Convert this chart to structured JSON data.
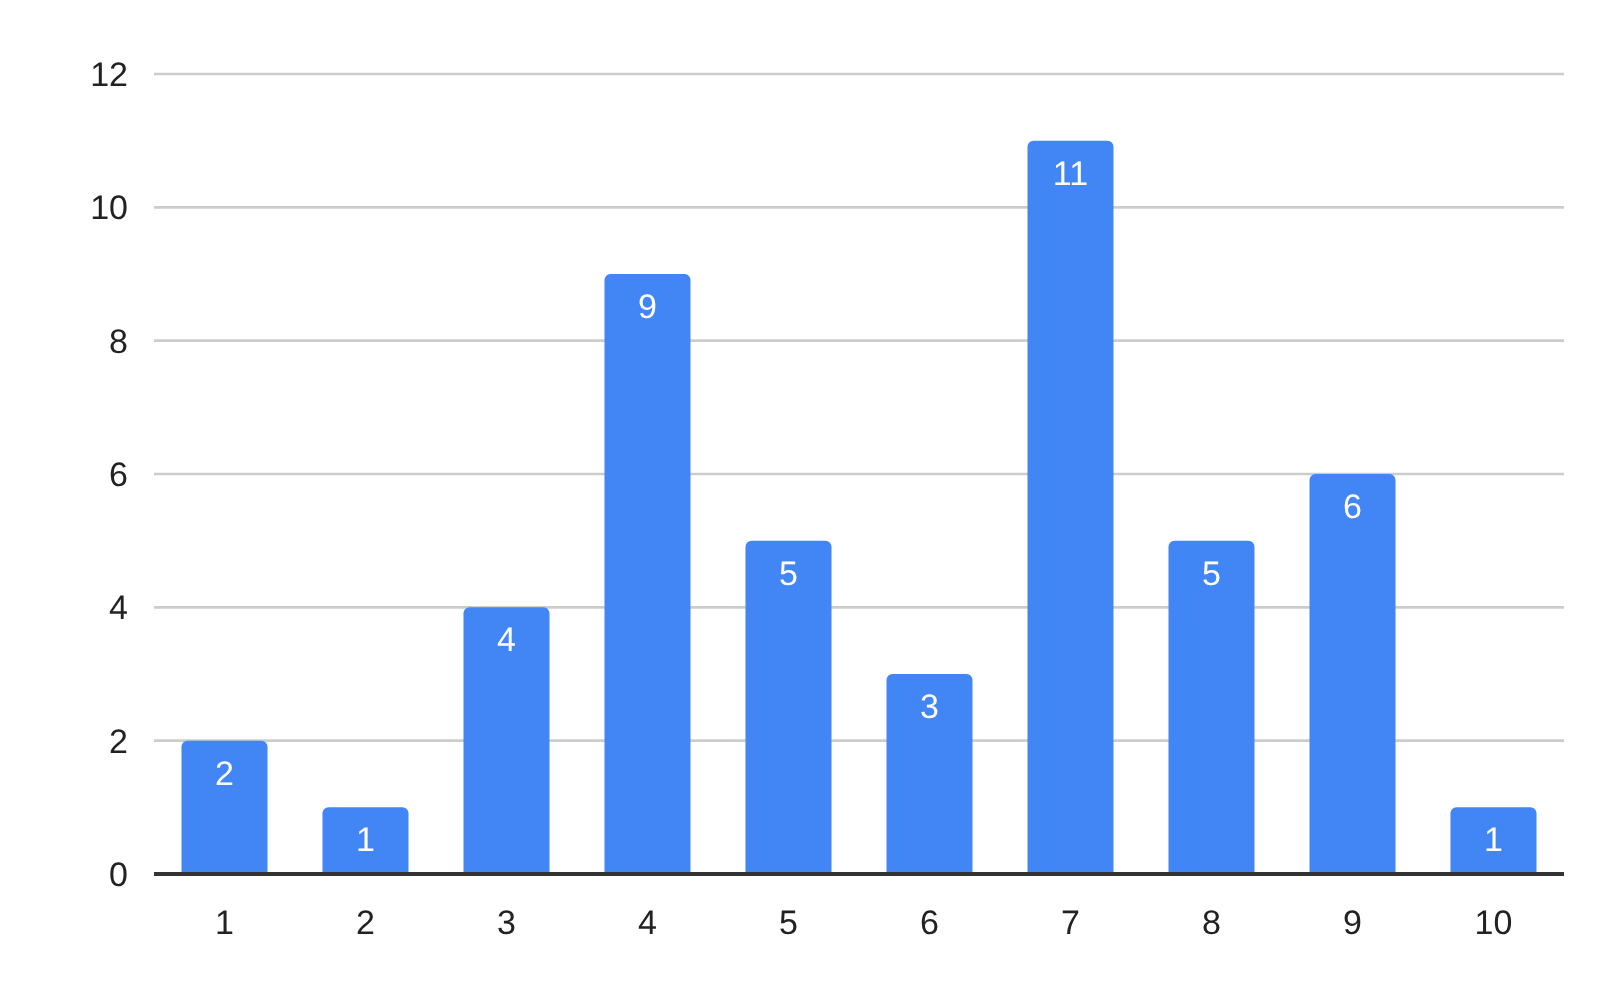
{
  "chart_data": {
    "type": "bar",
    "categories": [
      "1",
      "2",
      "3",
      "4",
      "5",
      "6",
      "7",
      "8",
      "9",
      "10"
    ],
    "values": [
      2,
      1,
      4,
      9,
      5,
      3,
      11,
      5,
      6,
      1
    ],
    "color": "#4285f4",
    "ylim": [
      0,
      12
    ],
    "yticks": [
      0,
      2,
      4,
      6,
      8,
      10,
      12
    ],
    "grid": "y",
    "data_labels": true
  }
}
